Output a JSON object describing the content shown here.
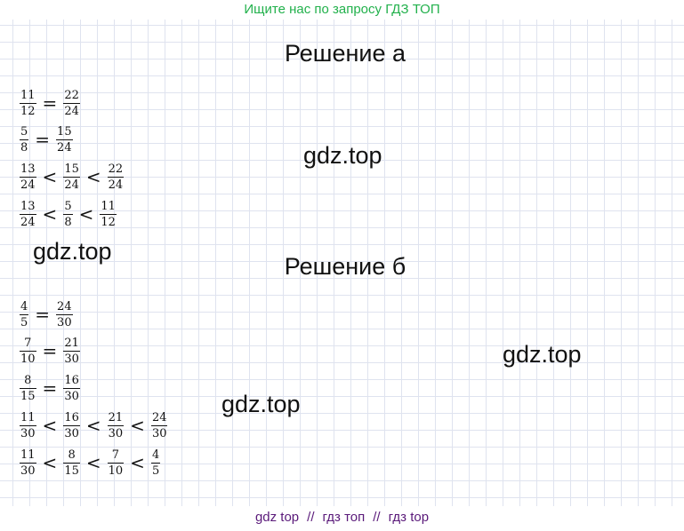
{
  "banner": "Ищите нас по запросу ГДЗ ТОП",
  "sections": [
    {
      "title": "Решение а",
      "lines": [
        {
          "items": [
            {
              "n": "11",
              "d": "12"
            },
            {
              "r": "="
            },
            {
              "n": "22",
              "d": "24"
            }
          ]
        },
        {
          "items": [
            {
              "n": "5",
              "d": "8"
            },
            {
              "r": "="
            },
            {
              "n": "15",
              "d": "24"
            }
          ]
        },
        {
          "items": [
            {
              "n": "13",
              "d": "24"
            },
            {
              "r": "<"
            },
            {
              "n": "15",
              "d": "24"
            },
            {
              "r": "<"
            },
            {
              "n": "22",
              "d": "24"
            }
          ]
        },
        {
          "items": [
            {
              "n": "13",
              "d": "24"
            },
            {
              "r": "<"
            },
            {
              "n": "5",
              "d": "8"
            },
            {
              "r": "<"
            },
            {
              "n": "11",
              "d": "12"
            }
          ]
        }
      ]
    },
    {
      "title": "Решение б",
      "lines": [
        {
          "items": [
            {
              "n": "4",
              "d": "5"
            },
            {
              "r": "="
            },
            {
              "n": "24",
              "d": "30"
            }
          ]
        },
        {
          "items": [
            {
              "n": "7",
              "d": "10"
            },
            {
              "r": "="
            },
            {
              "n": "21",
              "d": "30"
            }
          ]
        },
        {
          "items": [
            {
              "n": "8",
              "d": "15"
            },
            {
              "r": "="
            },
            {
              "n": "16",
              "d": "30"
            }
          ]
        },
        {
          "items": [
            {
              "n": "11",
              "d": "30"
            },
            {
              "r": "<"
            },
            {
              "n": "16",
              "d": "30"
            },
            {
              "r": "<"
            },
            {
              "n": "21",
              "d": "30"
            },
            {
              "r": "<"
            },
            {
              "n": "24",
              "d": "30"
            }
          ]
        },
        {
          "items": [
            {
              "n": "11",
              "d": "30"
            },
            {
              "r": "<"
            },
            {
              "n": "8",
              "d": "15"
            },
            {
              "r": "<"
            },
            {
              "n": "7",
              "d": "10"
            },
            {
              "r": "<"
            },
            {
              "n": "4",
              "d": "5"
            }
          ]
        }
      ]
    }
  ],
  "watermarks": [
    "gdz.top",
    "gdz.top",
    "gdz.top",
    "gdz.top"
  ],
  "footer": {
    "items": [
      "gdz top",
      "гдз топ",
      "гдз top"
    ],
    "separator": "//"
  },
  "colors": {
    "banner": "#22b14c",
    "footer": "#5a1a7a",
    "grid": "#dfe3ef"
  }
}
